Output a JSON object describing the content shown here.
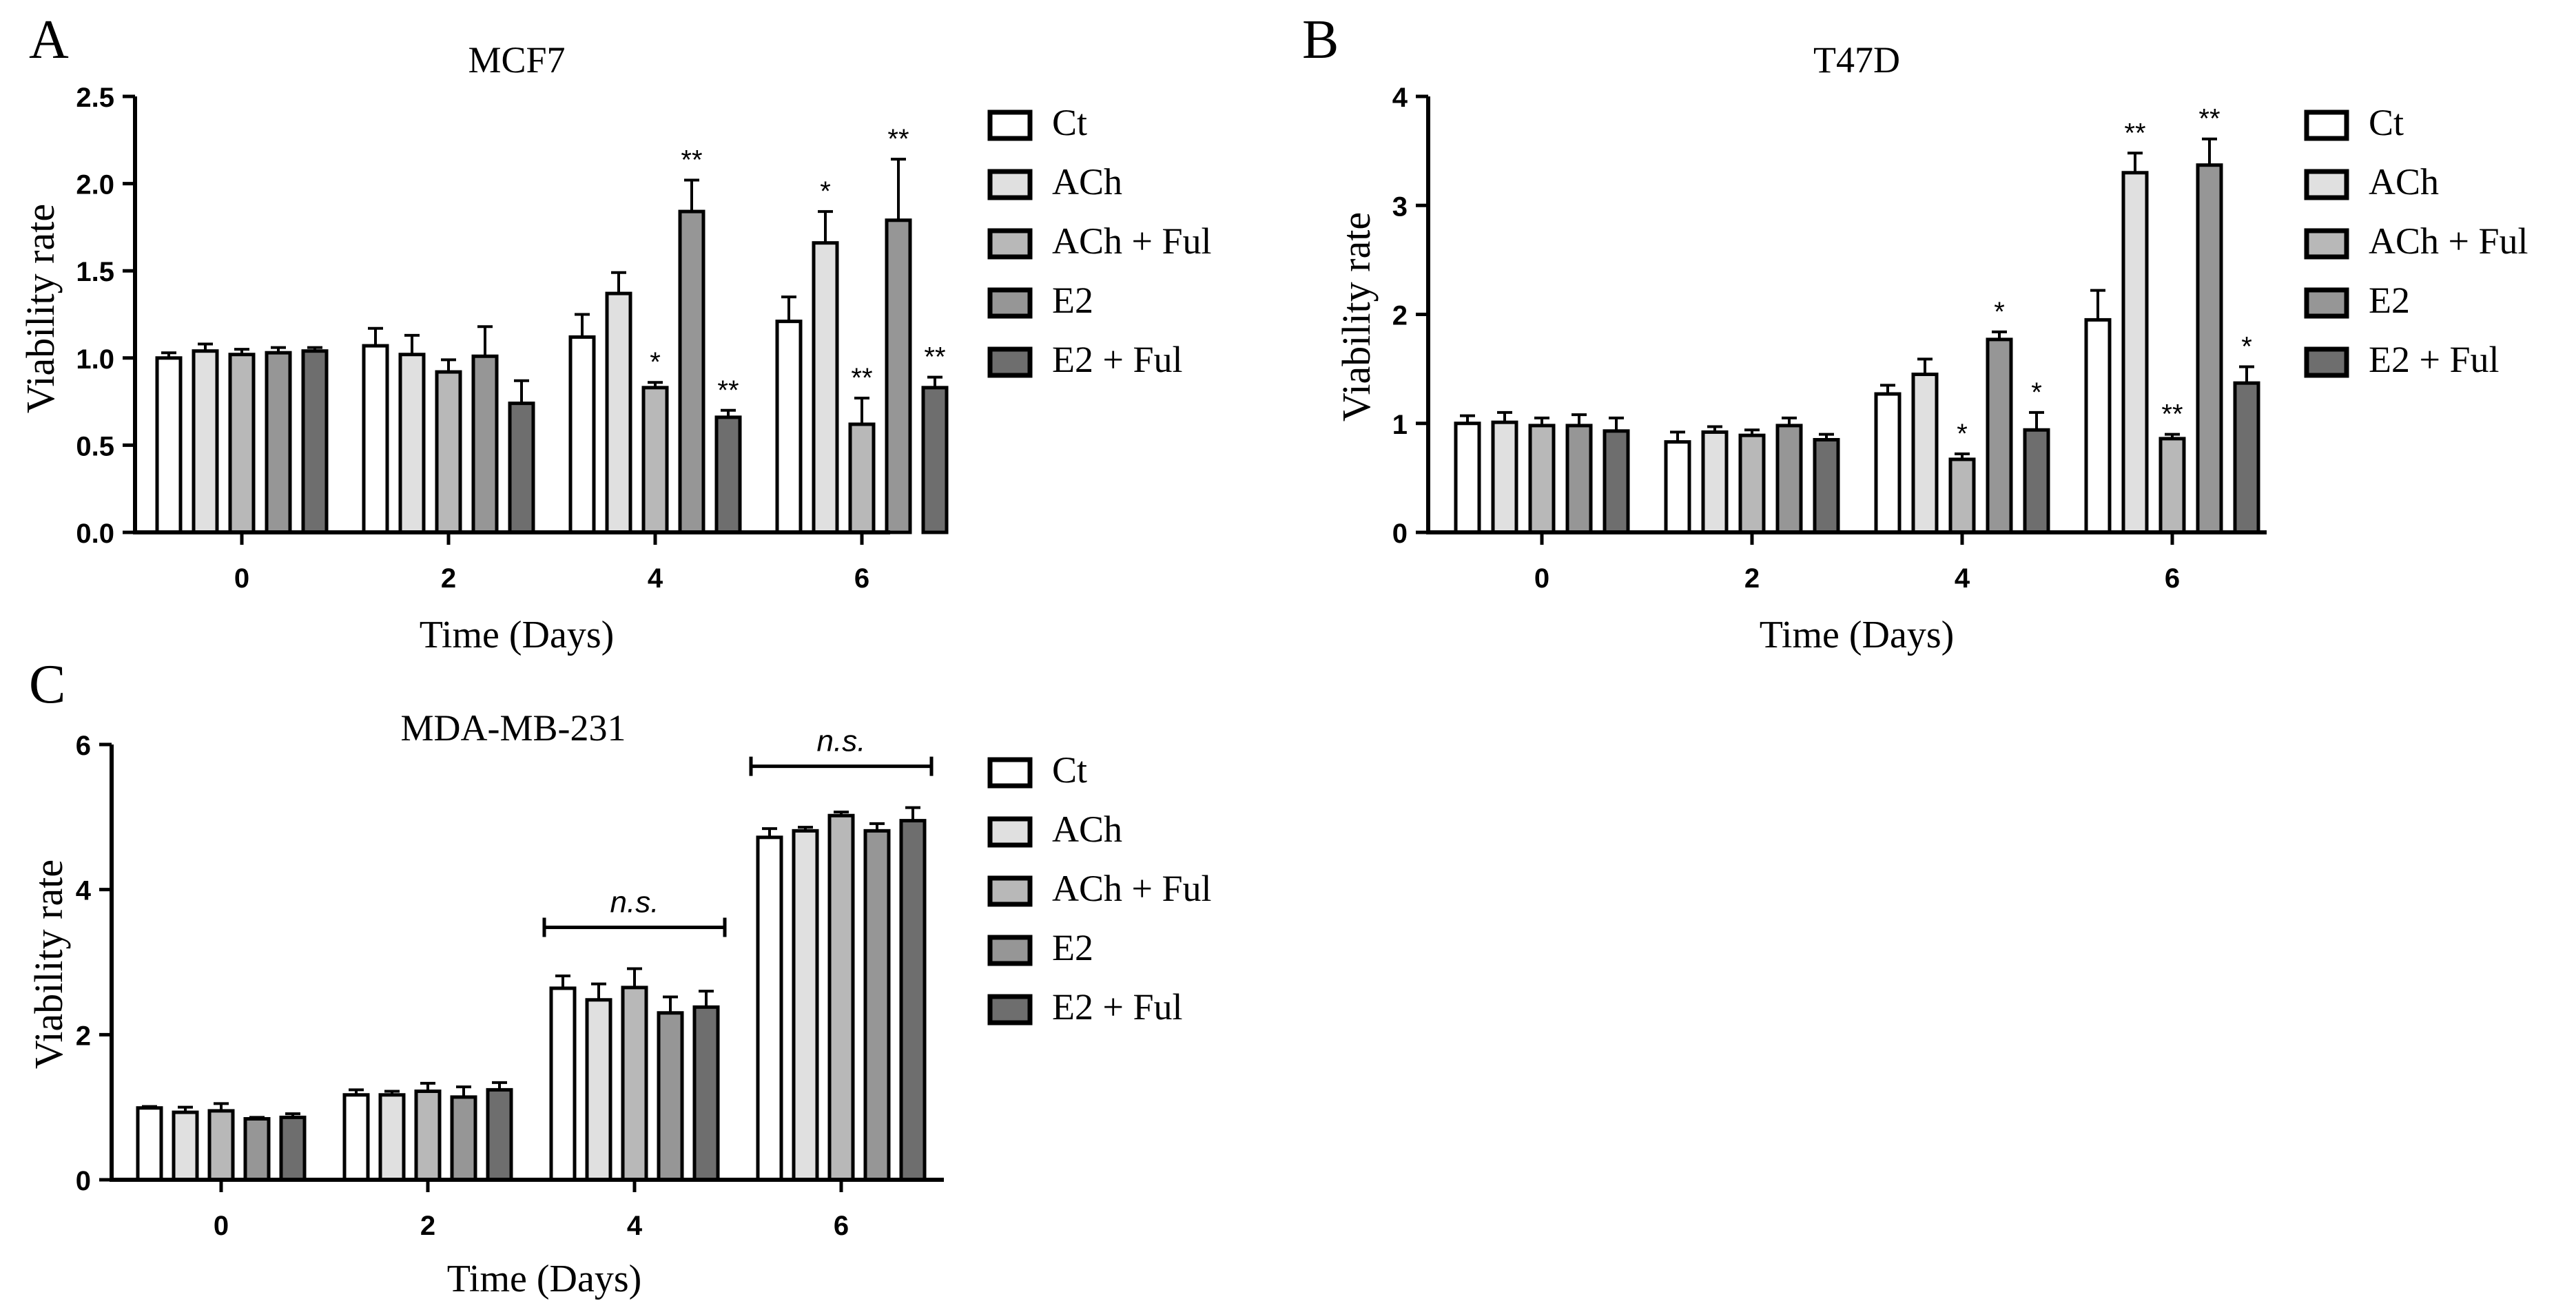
{
  "legend": {
    "items": [
      "Ct",
      "ACh",
      "ACh + Ful",
      "E2",
      "E2 + Ful"
    ],
    "fills": [
      "#ffffff",
      "#e0e0e0",
      "#b8b8b8",
      "#969696",
      "#6e6e6e"
    ]
  },
  "chart_data": [
    {
      "type": "bar",
      "panel": "A",
      "title": "MCF7",
      "xlabel": "Time (Days)",
      "ylabel": "Viability rate",
      "categories": [
        "0",
        "2",
        "4",
        "6"
      ],
      "ylim": [
        0,
        2.5
      ],
      "yticks": [
        0.0,
        0.5,
        1.0,
        1.5,
        2.0,
        2.5
      ],
      "ytick_labels": [
        "0.0",
        "0.5",
        "1.0",
        "1.5",
        "2.0",
        "2.5"
      ],
      "series": [
        {
          "name": "Ct",
          "values": [
            1.0,
            1.07,
            1.12,
            1.21
          ],
          "errors": [
            0.03,
            0.1,
            0.13,
            0.14
          ],
          "sig": [
            "",
            "",
            "",
            ""
          ]
        },
        {
          "name": "ACh",
          "values": [
            1.04,
            1.02,
            1.37,
            1.66
          ],
          "errors": [
            0.04,
            0.11,
            0.12,
            0.18
          ],
          "sig": [
            "",
            "",
            "",
            "*"
          ]
        },
        {
          "name": "ACh + Ful",
          "values": [
            1.02,
            0.92,
            0.83,
            0.62
          ],
          "errors": [
            0.03,
            0.07,
            0.03,
            0.15
          ],
          "sig": [
            "",
            "",
            "*",
            "**"
          ]
        },
        {
          "name": "E2",
          "values": [
            1.03,
            1.01,
            1.84,
            1.79
          ],
          "errors": [
            0.03,
            0.17,
            0.18,
            0.35
          ],
          "sig": [
            "",
            "",
            "**",
            "**"
          ]
        },
        {
          "name": "E2 + Ful",
          "values": [
            1.04,
            0.74,
            0.66,
            0.83
          ],
          "errors": [
            0.02,
            0.13,
            0.04,
            0.06
          ],
          "sig": [
            "",
            "",
            "**",
            "**"
          ]
        }
      ]
    },
    {
      "type": "bar",
      "panel": "B",
      "title": "T47D",
      "xlabel": "Time (Days)",
      "ylabel": "Viability rate",
      "categories": [
        "0",
        "2",
        "4",
        "6"
      ],
      "ylim": [
        0,
        4
      ],
      "yticks": [
        0,
        1,
        2,
        3,
        4
      ],
      "ytick_labels": [
        "0",
        "1",
        "2",
        "3",
        "4"
      ],
      "series": [
        {
          "name": "Ct",
          "values": [
            1.0,
            0.83,
            1.27,
            1.95
          ],
          "errors": [
            0.07,
            0.09,
            0.08,
            0.27
          ],
          "sig": [
            "",
            "",
            "",
            ""
          ]
        },
        {
          "name": "ACh",
          "values": [
            1.01,
            0.92,
            1.45,
            3.3
          ],
          "errors": [
            0.09,
            0.05,
            0.14,
            0.18
          ],
          "sig": [
            "",
            "",
            "",
            "**"
          ]
        },
        {
          "name": "ACh + Ful",
          "values": [
            0.98,
            0.89,
            0.67,
            0.86
          ],
          "errors": [
            0.07,
            0.05,
            0.05,
            0.04
          ],
          "sig": [
            "",
            "",
            "*",
            "**"
          ]
        },
        {
          "name": "E2",
          "values": [
            0.98,
            0.98,
            1.77,
            3.37
          ],
          "errors": [
            0.1,
            0.07,
            0.07,
            0.24
          ],
          "sig": [
            "",
            "",
            "*",
            "**"
          ]
        },
        {
          "name": "E2 + Ful",
          "values": [
            0.93,
            0.85,
            0.94,
            1.37
          ],
          "errors": [
            0.12,
            0.05,
            0.16,
            0.15
          ],
          "sig": [
            "",
            "",
            "*",
            "*"
          ]
        }
      ]
    },
    {
      "type": "bar",
      "panel": "C",
      "title": "MDA-MB-231",
      "xlabel": "Time (Days)",
      "ylabel": "Viability rate",
      "categories": [
        "0",
        "2",
        "4",
        "6"
      ],
      "ylim": [
        0,
        6
      ],
      "yticks": [
        0,
        2,
        4,
        6
      ],
      "ytick_labels": [
        "0",
        "2",
        "4",
        "6"
      ],
      "brackets": [
        {
          "category": "4",
          "label": "n.s."
        },
        {
          "category": "6",
          "label": "n.s."
        }
      ],
      "series": [
        {
          "name": "Ct",
          "values": [
            0.99,
            1.17,
            2.64,
            4.72
          ],
          "errors": [
            0.02,
            0.07,
            0.17,
            0.12
          ],
          "sig": [
            "",
            "",
            "",
            ""
          ]
        },
        {
          "name": "ACh",
          "values": [
            0.93,
            1.17,
            2.48,
            4.81
          ],
          "errors": [
            0.07,
            0.05,
            0.22,
            0.05
          ],
          "sig": [
            "",
            "",
            "",
            ""
          ]
        },
        {
          "name": "ACh + Ful",
          "values": [
            0.95,
            1.22,
            2.65,
            5.02
          ],
          "errors": [
            0.1,
            0.11,
            0.26,
            0.05
          ],
          "sig": [
            "",
            "",
            "",
            ""
          ]
        },
        {
          "name": "E2",
          "values": [
            0.84,
            1.14,
            2.3,
            4.81
          ],
          "errors": [
            0.02,
            0.14,
            0.22,
            0.1
          ],
          "sig": [
            "",
            "",
            "",
            ""
          ]
        },
        {
          "name": "E2 + Ful",
          "values": [
            0.86,
            1.24,
            2.38,
            4.95
          ],
          "errors": [
            0.05,
            0.1,
            0.22,
            0.18
          ],
          "sig": [
            "",
            "",
            "",
            ""
          ]
        }
      ]
    }
  ]
}
